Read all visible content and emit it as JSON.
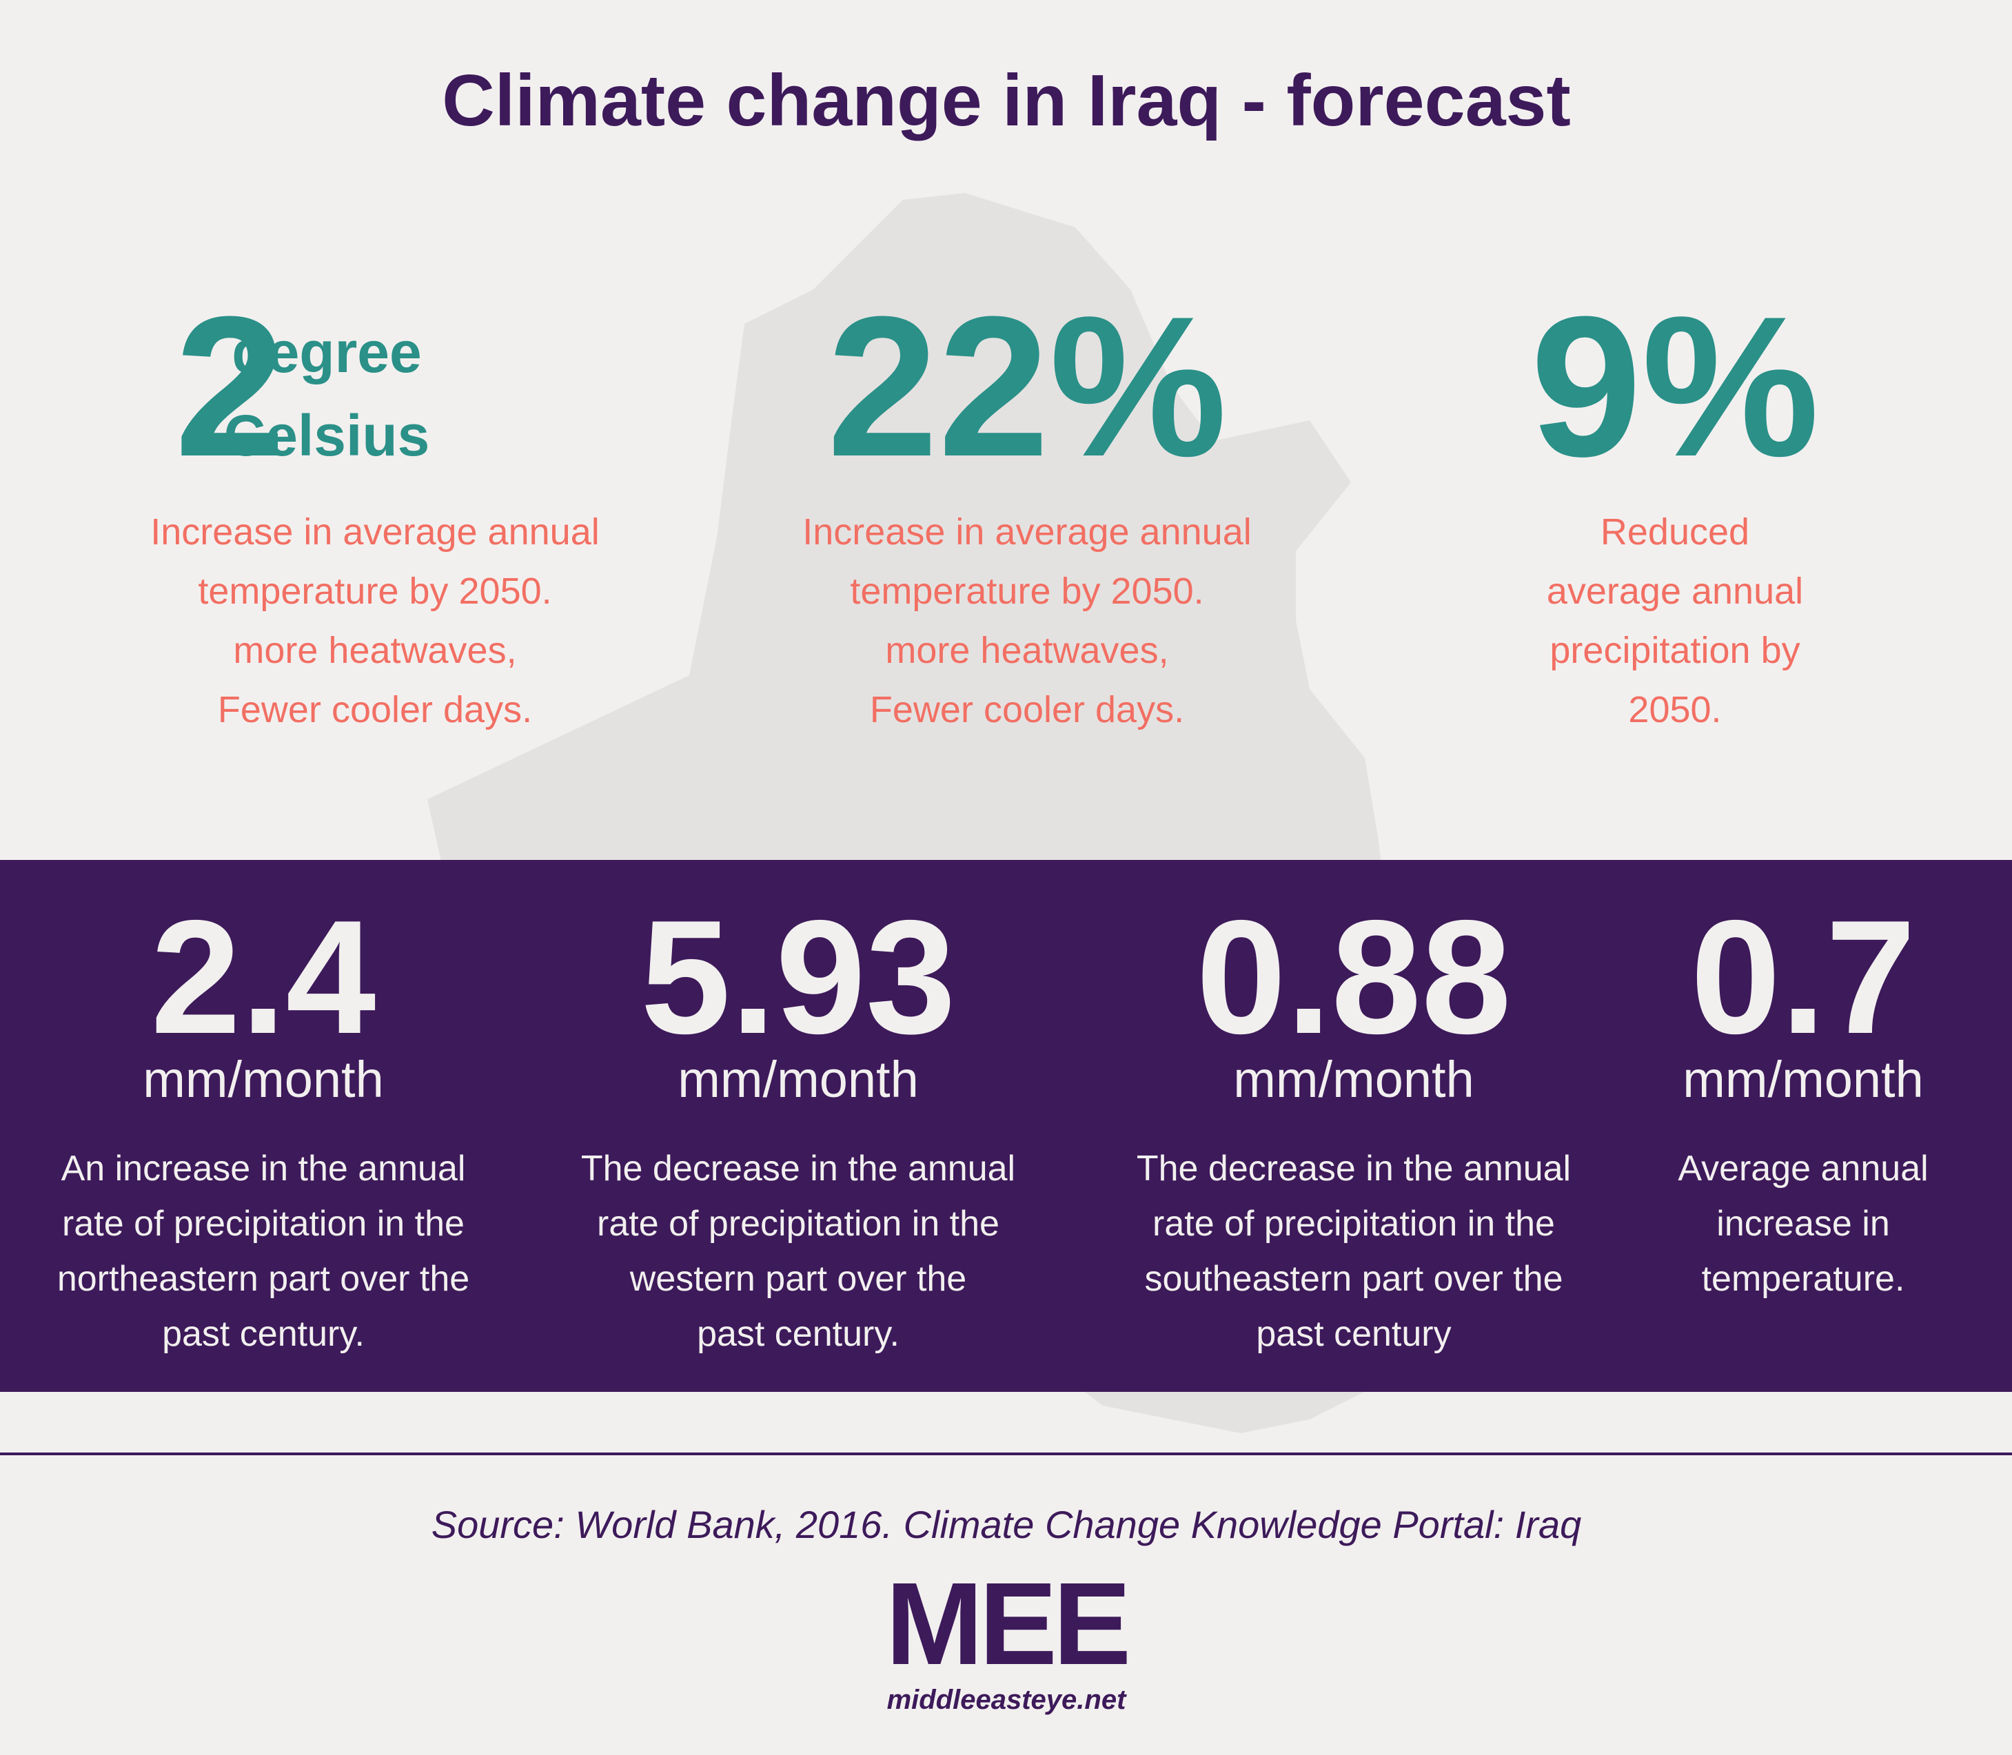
{
  "title": "Climate change in Iraq - forecast",
  "top_stats": [
    {
      "number": "2",
      "unit": [
        "degree",
        "Celsius"
      ],
      "description": [
        "Increase in average annual",
        "temperature by 2050.",
        "more heatwaves,",
        "Fewer cooler days."
      ]
    },
    {
      "number": "22%",
      "description": [
        "Increase in average annual",
        "temperature by 2050.",
        "more heatwaves,",
        "Fewer cooler days."
      ]
    },
    {
      "number": "9%",
      "description": [
        "Reduced",
        "average annual",
        "precipitation by",
        "2050."
      ]
    }
  ],
  "bottom_stats": [
    {
      "number": "2.4",
      "unit": "mm/month",
      "description": [
        "An increase in the annual",
        "rate of precipitation in the",
        "northeastern part over the",
        "past century."
      ]
    },
    {
      "number": "5.93",
      "unit": "mm/month",
      "description": [
        "The decrease in the annual",
        "rate of precipitation in the",
        "western part over the",
        "past century."
      ]
    },
    {
      "number": "0.88",
      "unit": "mm/month",
      "description": [
        "The decrease in the annual",
        "rate of precipitation in the",
        "southeastern part over the",
        "past century"
      ]
    },
    {
      "number": "0.7",
      "unit": "mm/month",
      "description": [
        "Average annual",
        "increase in",
        "temperature."
      ]
    }
  ],
  "source": "Source: World Bank, 2016. Climate Change Knowledge Portal: Iraq",
  "logo": {
    "mark": "MEE",
    "url": "middleeasteye.net"
  }
}
